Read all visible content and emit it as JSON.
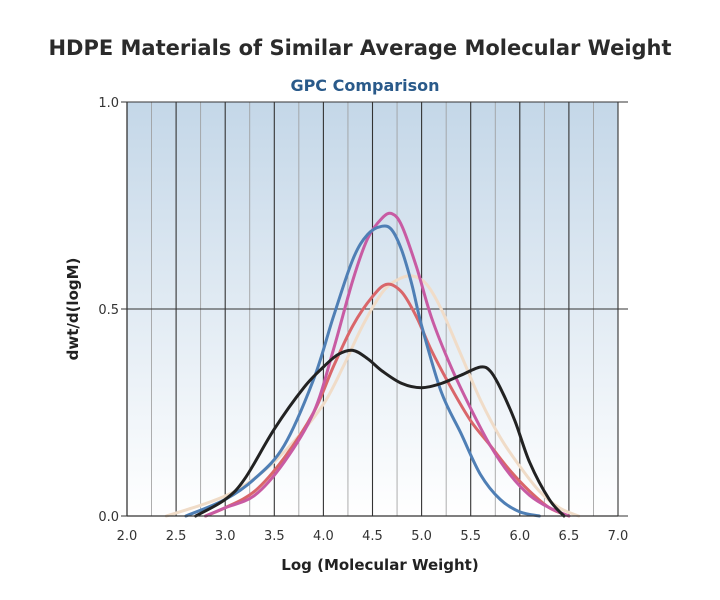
{
  "chart_data": {
    "type": "line",
    "title": "HDPE Materials of Similar Average Molecular Weight",
    "subtitle": "GPC Comparison",
    "xlabel": "Log (Molecular Weight)",
    "ylabel": "dwt/d(logM)",
    "xlim": [
      2.0,
      7.0
    ],
    "ylim": [
      0.0,
      1.0
    ],
    "x_ticks": [
      "2.0",
      "2.5",
      "3.0",
      "3.5",
      "4.0",
      "4.5",
      "5.0",
      "5.5",
      "6.0",
      "6.5",
      "7.0"
    ],
    "y_ticks": [
      "0.0",
      "0.5",
      "1.0"
    ],
    "grid": true,
    "legend": "none",
    "colors": {
      "subtitle": "#2a5a8a",
      "background_top": "#c4d7e8",
      "background_bottom": "#ffffff",
      "grid_major": "#333333",
      "grid_minor": "#9a9a9a"
    },
    "series": [
      {
        "color": "#222222",
        "x": [
          2.7,
          3.0,
          3.2,
          3.5,
          3.8,
          4.0,
          4.15,
          4.3,
          4.45,
          4.6,
          4.8,
          5.0,
          5.2,
          5.4,
          5.6,
          5.7,
          5.8,
          5.95,
          6.1,
          6.3,
          6.45
        ],
        "y": [
          0.0,
          0.04,
          0.09,
          0.21,
          0.31,
          0.36,
          0.39,
          0.4,
          0.38,
          0.35,
          0.32,
          0.31,
          0.32,
          0.34,
          0.36,
          0.35,
          0.31,
          0.23,
          0.13,
          0.04,
          0.0
        ]
      },
      {
        "color": "#4f7fb5",
        "x": [
          2.6,
          3.0,
          3.3,
          3.6,
          3.9,
          4.1,
          4.3,
          4.45,
          4.6,
          4.7,
          4.8,
          4.9,
          5.0,
          5.2,
          5.4,
          5.6,
          5.8,
          6.0,
          6.2
        ],
        "y": [
          0.0,
          0.04,
          0.09,
          0.17,
          0.33,
          0.48,
          0.62,
          0.68,
          0.7,
          0.69,
          0.64,
          0.56,
          0.46,
          0.3,
          0.2,
          0.1,
          0.04,
          0.01,
          0.0
        ]
      },
      {
        "color": "#c85ba3",
        "x": [
          2.8,
          3.0,
          3.3,
          3.6,
          3.9,
          4.1,
          4.3,
          4.45,
          4.6,
          4.7,
          4.8,
          4.95,
          5.1,
          5.3,
          5.5,
          5.7,
          5.9,
          6.1,
          6.3,
          6.5
        ],
        "y": [
          0.0,
          0.02,
          0.05,
          0.13,
          0.25,
          0.4,
          0.57,
          0.67,
          0.72,
          0.73,
          0.7,
          0.6,
          0.48,
          0.36,
          0.26,
          0.17,
          0.1,
          0.05,
          0.02,
          0.0
        ]
      },
      {
        "color": "#d9666a",
        "x": [
          2.8,
          3.0,
          3.3,
          3.6,
          3.9,
          4.1,
          4.3,
          4.5,
          4.65,
          4.8,
          4.95,
          5.1,
          5.3,
          5.5,
          5.7,
          5.9,
          6.1,
          6.3,
          6.5
        ],
        "y": [
          0.0,
          0.02,
          0.06,
          0.14,
          0.25,
          0.36,
          0.46,
          0.53,
          0.56,
          0.54,
          0.48,
          0.4,
          0.31,
          0.23,
          0.17,
          0.11,
          0.06,
          0.02,
          0.0
        ]
      },
      {
        "color": "#f0dcc8",
        "x": [
          2.4,
          2.8,
          3.1,
          3.4,
          3.7,
          4.0,
          4.2,
          4.4,
          4.6,
          4.75,
          4.9,
          5.05,
          5.2,
          5.4,
          5.6,
          5.8,
          6.0,
          6.2,
          6.4,
          6.6
        ],
        "y": [
          0.0,
          0.03,
          0.06,
          0.11,
          0.18,
          0.27,
          0.36,
          0.46,
          0.54,
          0.57,
          0.58,
          0.56,
          0.5,
          0.39,
          0.28,
          0.19,
          0.12,
          0.06,
          0.02,
          0.0
        ]
      }
    ]
  }
}
